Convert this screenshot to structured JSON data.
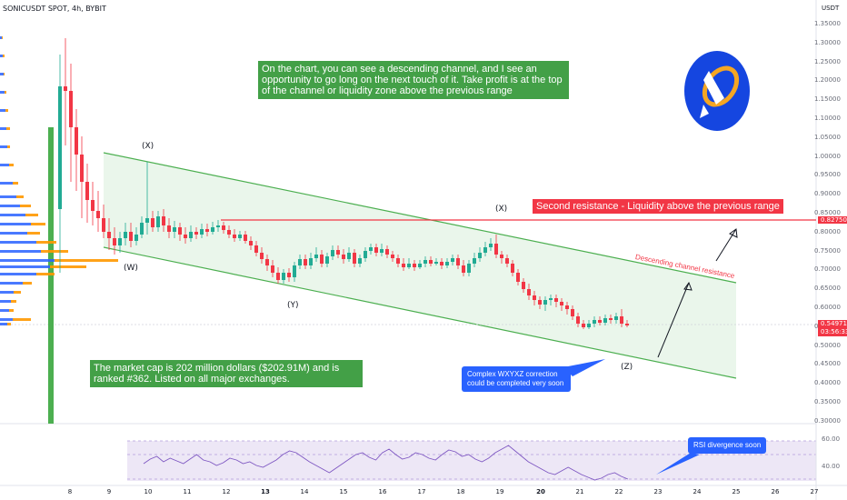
{
  "header": {
    "symbol_line": "SONICUSDT SPOT, 4h, BYBIT"
  },
  "price_axis": {
    "unit": "USDT",
    "labels": [
      "1.35000",
      "1.30000",
      "1.25000",
      "1.20000",
      "1.15000",
      "1.10000",
      "1.05000",
      "1.00000",
      "0.95000",
      "0.90000",
      "0.85000",
      "0.80000",
      "0.75000",
      "0.70000",
      "0.65000",
      "0.60000",
      "0.55000",
      "0.50000",
      "0.45000",
      "0.40000",
      "0.35000",
      "0.30000"
    ],
    "resistance_tag": "0.82750",
    "current_price": "0.54971",
    "countdown": "03:56:33"
  },
  "time_axis": {
    "labels": [
      "8",
      "9",
      "10",
      "11",
      "12",
      "13",
      "14",
      "15",
      "16",
      "17",
      "18",
      "19",
      "20",
      "21",
      "22",
      "23",
      "24",
      "25",
      "26",
      "27"
    ]
  },
  "rsi_axis": {
    "labels": [
      "60.00",
      "40.00"
    ]
  },
  "annotations": {
    "top_note": "On the chart, you can see a descending channel, and I see an opportunity to go long on the next touch of it. Take profit is at the top of the channel or liquidity zone above the previous range",
    "resistance_note": "Second resistance - Liquidity above the previous range",
    "channel_note": "Descending channel resistance",
    "market_cap_note": "The market cap is 202 million dollars ($202.91M) and is ranked #362. Listed on all major exchanges.",
    "correction_note": "Complex WXYXZ correction could be completed very soon",
    "rsi_note": "RSI divergence soon"
  },
  "waves": {
    "x1": "(X)",
    "w": "(W)",
    "y": "(Y)",
    "x2": "(X)",
    "z": "(Z)"
  },
  "colors": {
    "up": "#22ab94",
    "down": "#f23645",
    "channel": "#4caf50",
    "channel_fill": "#e8f5e9",
    "resistance": "#f23645",
    "rsi_line": "#7e57c2",
    "note_green": "#43a047",
    "note_blue": "#2962ff"
  }
}
